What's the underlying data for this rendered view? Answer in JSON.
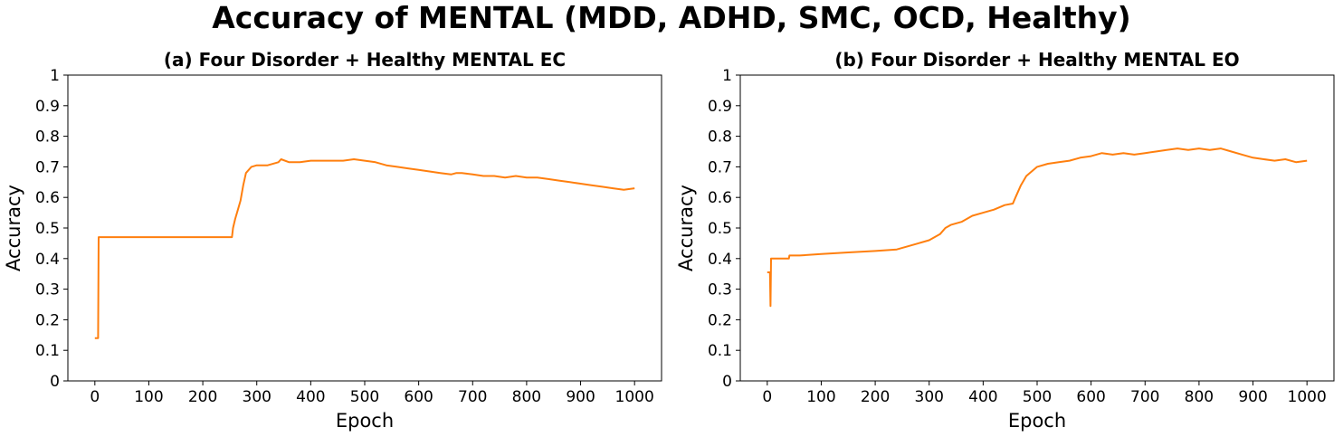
{
  "figure": {
    "title": "Accuracy of MENTAL (MDD, ADHD, SMC, OCD, Healthy)"
  },
  "style": {
    "line_color": "#ff7f0e",
    "axis_color": "#000000",
    "background": "#ffffff"
  },
  "chart_data": [
    {
      "type": "line",
      "title": "(a) Four Disorder + Healthy MENTAL EC",
      "xlabel": "Epoch",
      "ylabel": "Accuracy",
      "xlim": [
        -50,
        1050
      ],
      "ylim": [
        0,
        1
      ],
      "xticks": [
        0,
        100,
        200,
        300,
        400,
        500,
        600,
        700,
        800,
        900,
        1000
      ],
      "yticks": [
        0,
        0.1,
        0.2,
        0.3,
        0.4,
        0.5,
        0.6,
        0.7,
        0.8,
        0.9,
        1
      ],
      "ytick_labels": [
        "0",
        "0.1",
        "0.2",
        "0.3",
        "0.4",
        "0.5",
        "0.6",
        "0.7",
        "0.8",
        "0.9",
        "1"
      ],
      "grid": false,
      "series": [
        {
          "color": "#ff7f0e",
          "x": [
            0,
            6,
            7,
            100,
            200,
            254,
            256,
            260,
            265,
            270,
            275,
            280,
            290,
            300,
            320,
            340,
            345,
            360,
            380,
            400,
            420,
            440,
            460,
            480,
            500,
            520,
            540,
            560,
            580,
            600,
            620,
            640,
            660,
            670,
            680,
            700,
            720,
            740,
            760,
            780,
            800,
            820,
            840,
            860,
            880,
            900,
            920,
            940,
            960,
            980,
            1000
          ],
          "y": [
            0.14,
            0.14,
            0.47,
            0.47,
            0.47,
            0.47,
            0.5,
            0.53,
            0.56,
            0.59,
            0.64,
            0.68,
            0.7,
            0.705,
            0.705,
            0.715,
            0.725,
            0.715,
            0.715,
            0.72,
            0.72,
            0.72,
            0.72,
            0.725,
            0.72,
            0.715,
            0.705,
            0.7,
            0.695,
            0.69,
            0.685,
            0.68,
            0.675,
            0.68,
            0.68,
            0.675,
            0.67,
            0.67,
            0.665,
            0.67,
            0.665,
            0.665,
            0.66,
            0.655,
            0.65,
            0.645,
            0.64,
            0.635,
            0.63,
            0.625,
            0.63
          ]
        }
      ]
    },
    {
      "type": "line",
      "title": "(b) Four Disorder + Healthy MENTAL EO",
      "xlabel": "Epoch",
      "ylabel": "Accuracy",
      "xlim": [
        -50,
        1050
      ],
      "ylim": [
        0,
        1
      ],
      "xticks": [
        0,
        100,
        200,
        300,
        400,
        500,
        600,
        700,
        800,
        900,
        1000
      ],
      "yticks": [
        0,
        0.1,
        0.2,
        0.3,
        0.4,
        0.5,
        0.6,
        0.7,
        0.8,
        0.9,
        1
      ],
      "ytick_labels": [
        "0",
        "0.1",
        "0.2",
        "0.3",
        "0.4",
        "0.5",
        "0.6",
        "0.7",
        "0.8",
        "0.9",
        "1"
      ],
      "grid": false,
      "series": [
        {
          "color": "#ff7f0e",
          "x": [
            0,
            4,
            5,
            6,
            7,
            8,
            40,
            41,
            60,
            100,
            150,
            200,
            240,
            260,
            280,
            300,
            320,
            330,
            340,
            360,
            380,
            400,
            420,
            440,
            455,
            460,
            470,
            480,
            500,
            520,
            540,
            560,
            580,
            600,
            620,
            640,
            660,
            680,
            700,
            720,
            740,
            760,
            780,
            800,
            820,
            840,
            860,
            880,
            900,
            920,
            940,
            960,
            980,
            1000
          ],
          "y": [
            0.355,
            0.355,
            0.355,
            0.245,
            0.4,
            0.4,
            0.4,
            0.41,
            0.41,
            0.415,
            0.42,
            0.425,
            0.43,
            0.44,
            0.45,
            0.46,
            0.48,
            0.5,
            0.51,
            0.52,
            0.54,
            0.55,
            0.56,
            0.575,
            0.58,
            0.6,
            0.64,
            0.67,
            0.7,
            0.71,
            0.715,
            0.72,
            0.73,
            0.735,
            0.745,
            0.74,
            0.745,
            0.74,
            0.745,
            0.75,
            0.755,
            0.76,
            0.755,
            0.76,
            0.755,
            0.76,
            0.75,
            0.74,
            0.73,
            0.725,
            0.72,
            0.725,
            0.715,
            0.72
          ]
        }
      ]
    }
  ]
}
